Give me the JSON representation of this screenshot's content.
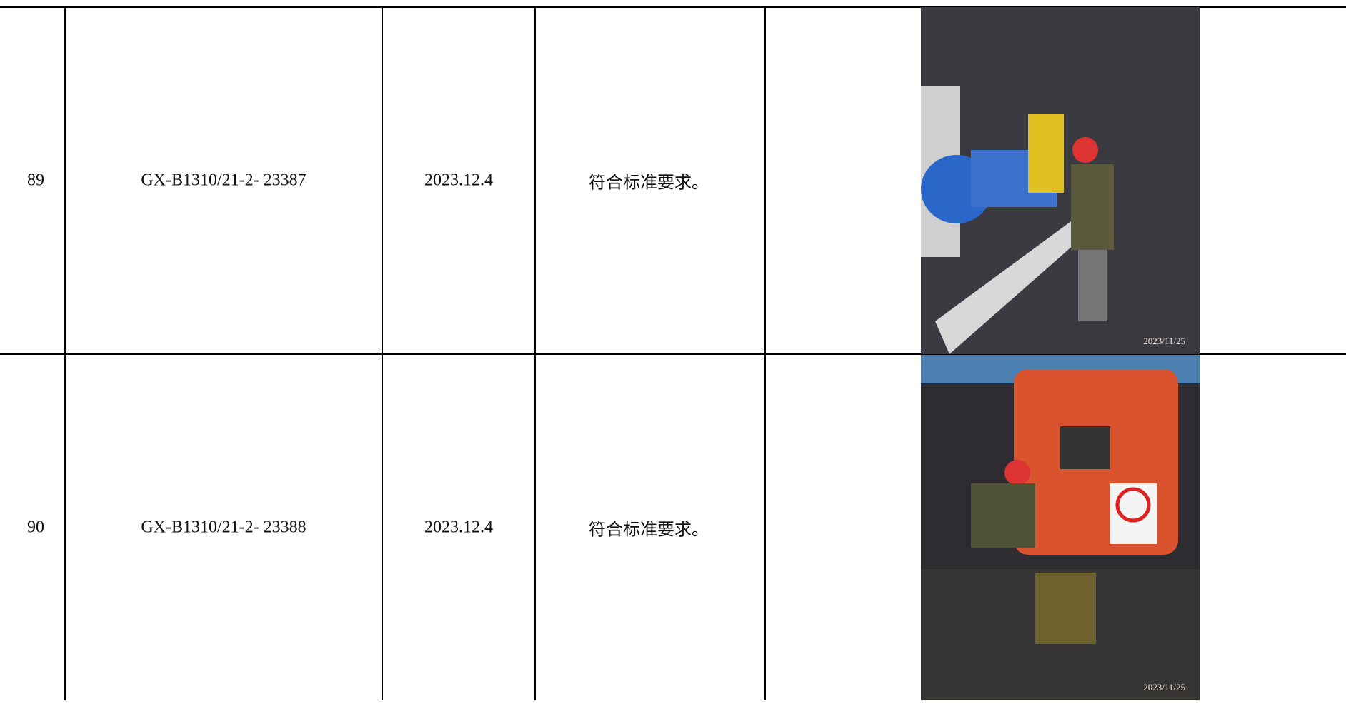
{
  "table": {
    "rows": [
      {
        "no": "89",
        "code": "GX-B1310/21-2- 23387",
        "date": "2023.12.4",
        "result": "符合标准要求。",
        "photo_stamp": "2023/11/25"
      },
      {
        "no": "90",
        "code": "GX-B1310/21-2- 23388",
        "date": "2023.12.4",
        "result": "符合标准要求。",
        "photo_stamp": "2023/11/25"
      }
    ]
  }
}
